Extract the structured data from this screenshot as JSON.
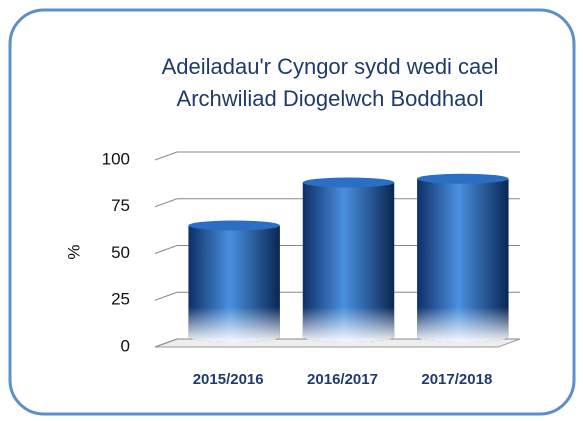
{
  "chart_data": {
    "type": "bar",
    "title": [
      "Adeiladau'r Cyngor sydd wedi cael",
      "Archwiliad Diogelwch Boddhaol"
    ],
    "ylabel": "%",
    "categories": [
      "2015/2016",
      "2016/2017",
      "2017/2018"
    ],
    "values": [
      65,
      88,
      90
    ],
    "color": "#2a6fc4",
    "ylim": [
      0,
      100
    ],
    "yticks": [
      0,
      25,
      50,
      75,
      100
    ],
    "grid": true
  }
}
